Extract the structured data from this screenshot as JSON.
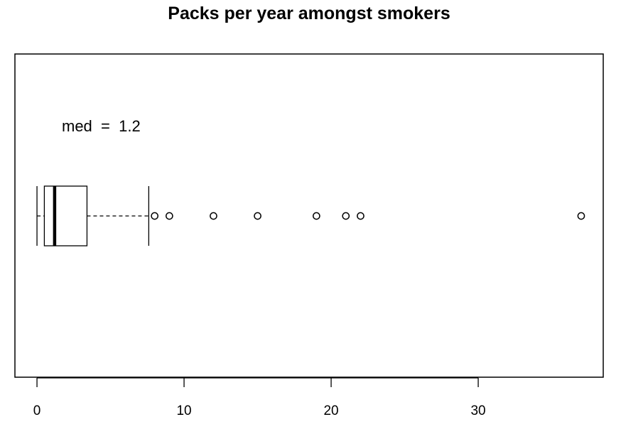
{
  "chart_data": {
    "type": "boxplot",
    "orientation": "horizontal",
    "title": "Packs per year amongst smokers",
    "xlabel": "",
    "ylabel": "",
    "xlim": [
      -1.5,
      38.5
    ],
    "xticks": [
      0,
      10,
      20,
      30
    ],
    "xtick_labels": [
      "0",
      "10",
      "20",
      "30"
    ],
    "grid": false,
    "box": {
      "whisker_low": 0,
      "q1": 0.5,
      "median": 1.2,
      "q3": 3.4,
      "whisker_high": 7.6
    },
    "outliers": [
      8,
      9,
      12,
      15,
      19,
      21,
      22,
      37
    ],
    "annotation": {
      "text": "med  =  1.2"
    },
    "colors": {
      "stroke": "#000000",
      "background": "#ffffff"
    }
  }
}
